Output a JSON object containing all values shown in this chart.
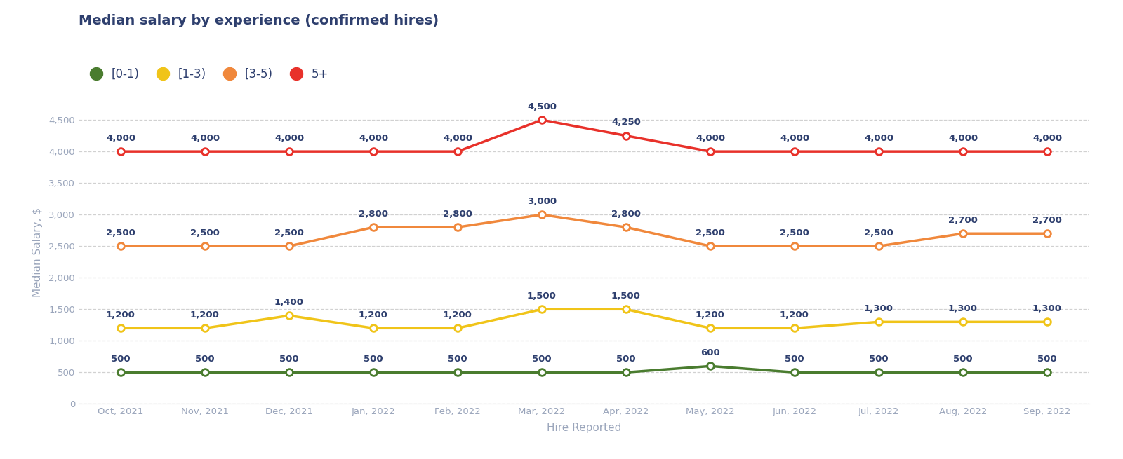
{
  "title": "Median salary by experience (confirmed hires)",
  "xlabel": "Hire Reported",
  "ylabel": "Median Salary, $",
  "categories": [
    "Oct, 2021",
    "Nov, 2021",
    "Dec, 2021",
    "Jan, 2022",
    "Feb, 2022",
    "Mar, 2022",
    "Apr, 2022",
    "May, 2022",
    "Jun, 2022",
    "Jul, 2022",
    "Aug, 2022",
    "Sep, 2022"
  ],
  "series": [
    {
      "label": "[0-1)",
      "color": "#4a7c2f",
      "values": [
        500,
        500,
        500,
        500,
        500,
        500,
        500,
        600,
        500,
        500,
        500,
        500
      ]
    },
    {
      "label": "[1-3)",
      "color": "#f0c419",
      "values": [
        1200,
        1200,
        1400,
        1200,
        1200,
        1500,
        1500,
        1200,
        1200,
        1300,
        1300,
        1300
      ]
    },
    {
      "label": "[3-5)",
      "color": "#f0883c",
      "values": [
        2500,
        2500,
        2500,
        2800,
        2800,
        3000,
        2800,
        2500,
        2500,
        2500,
        2700,
        2700
      ]
    },
    {
      "label": "5+",
      "color": "#e8312a",
      "values": [
        4000,
        4000,
        4000,
        4000,
        4000,
        4500,
        4250,
        4000,
        4000,
        4000,
        4000,
        4000
      ]
    }
  ],
  "ylim": [
    0,
    4800
  ],
  "yticks": [
    0,
    500,
    1000,
    1500,
    2000,
    2500,
    3000,
    3500,
    4000,
    4500
  ],
  "background_color": "#ffffff",
  "grid_color": "#cccccc",
  "title_color": "#2e3f6e",
  "label_color": "#2e3f6e",
  "axis_tick_color": "#9aa5bb",
  "annotation_color": "#2e3f6e",
  "xlabel_color": "#9aa5bb",
  "ylabel_color": "#9aa5bb",
  "legend_dot_size": 13,
  "title_fontsize": 14,
  "legend_fontsize": 12,
  "axis_label_fontsize": 11,
  "tick_fontsize": 9.5,
  "annotation_fontsize": 9.5,
  "line_width": 2.5,
  "marker_size": 7
}
